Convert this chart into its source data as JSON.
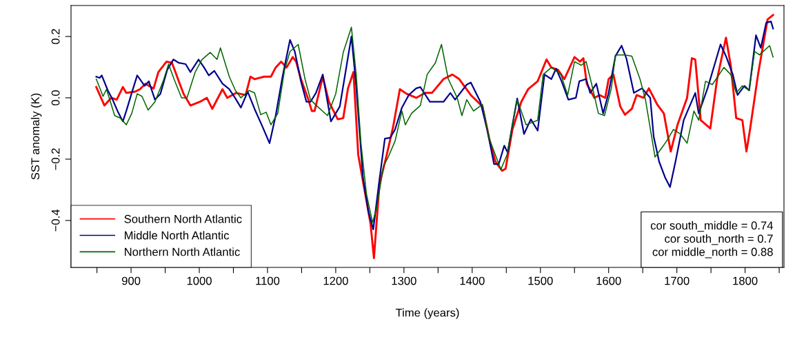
{
  "chart_data": {
    "type": "line",
    "xlabel": "Time (years)",
    "ylabel": "SST anomaly (K)",
    "xlim": [
      812,
      1857
    ],
    "ylim": [
      -0.553,
      0.301
    ],
    "xticks": [
      {
        "value": 850,
        "label": null
      },
      900,
      {
        "value": 950,
        "label": null
      },
      1000,
      {
        "value": 1050,
        "label": null
      },
      1100,
      {
        "value": 1150,
        "label": null
      },
      1200,
      {
        "value": 1250,
        "label": null
      },
      1300,
      {
        "value": 1350,
        "label": null
      },
      1400,
      {
        "value": 1450,
        "label": null
      },
      1500,
      {
        "value": 1550,
        "label": null
      },
      1600,
      {
        "value": 1650,
        "label": null
      },
      1700,
      {
        "value": 1750,
        "label": null
      },
      1800,
      {
        "value": 1850,
        "label": null
      }
    ],
    "yticks": [
      {
        "value": -0.4,
        "label": "−0.4"
      },
      {
        "value": -0.2,
        "label": "−0.2"
      },
      {
        "value": 0.0,
        "label": "0.0"
      },
      0.2
    ],
    "grid": false,
    "legend": "bottom left",
    "line_style": "solid",
    "marker": "none",
    "annotations": [
      "cor south_middle = 0.74",
      "cor south_north = 0.7",
      "cor middle_north = 0.88"
    ],
    "series": [
      {
        "name": "Southern North Atlantic",
        "color": "#ff0000",
        "x": [
          849,
          861,
          871,
          879,
          888,
          893,
          906,
          913,
          921,
          933,
          940,
          952,
          960,
          970,
          977,
          987,
          1001,
          1011,
          1019,
          1034,
          1041,
          1054,
          1068,
          1075,
          1081,
          1095,
          1105,
          1112,
          1120,
          1128,
          1137,
          1142,
          1149,
          1159,
          1165,
          1169,
          1181,
          1190,
          1203,
          1211,
          1218,
          1226,
          1233,
          1242,
          1251,
          1256,
          1264,
          1274,
          1284,
          1294,
          1304,
          1318,
          1331,
          1341,
          1358,
          1371,
          1381,
          1398,
          1415,
          1425,
          1434,
          1444,
          1449,
          1459,
          1472,
          1482,
          1496,
          1509,
          1516,
          1526,
          1535,
          1550,
          1558,
          1563,
          1568,
          1579,
          1587,
          1595,
          1600,
          1607,
          1617,
          1624,
          1634,
          1641,
          1651,
          1659,
          1671,
          1681,
          1691,
          1701,
          1715,
          1722,
          1727,
          1735,
          1749,
          1759,
          1772,
          1779,
          1787,
          1796,
          1802,
          1807,
          1819,
          1833,
          1841
        ],
        "values": [
          0.035,
          -0.025,
          0.0,
          -0.006,
          0.035,
          0.016,
          0.02,
          0.028,
          0.046,
          0.03,
          0.084,
          0.118,
          0.114,
          0.054,
          0.013,
          -0.025,
          -0.013,
          0.0,
          -0.036,
          0.028,
          0.0,
          0.016,
          0.009,
          0.069,
          0.061,
          0.069,
          0.069,
          0.099,
          0.118,
          0.099,
          0.133,
          0.118,
          0.061,
          0.0,
          -0.043,
          -0.043,
          0.069,
          -0.013,
          -0.07,
          -0.066,
          0.031,
          0.084,
          -0.186,
          -0.298,
          -0.41,
          -0.523,
          -0.283,
          -0.193,
          -0.096,
          0.028,
          0.013,
          0.0,
          0.016,
          0.016,
          0.061,
          0.076,
          0.061,
          0.009,
          -0.028,
          -0.133,
          -0.208,
          -0.238,
          -0.231,
          -0.103,
          -0.013,
          0.028,
          0.054,
          0.125,
          0.099,
          0.091,
          0.061,
          0.133,
          0.118,
          0.129,
          0.046,
          0.0,
          0.009,
          0.0,
          0.061,
          0.076,
          -0.028,
          -0.055,
          -0.036,
          0.009,
          0.0,
          0.031,
          -0.021,
          -0.051,
          -0.175,
          -0.088,
          0.0,
          0.129,
          0.125,
          -0.073,
          -0.1,
          0.061,
          0.196,
          0.106,
          -0.066,
          -0.073,
          -0.175,
          -0.107,
          0.076,
          0.256,
          0.27
        ]
      },
      {
        "name": "Middle North Atlantic",
        "color": "#00008b",
        "x": [
          849,
          854,
          857,
          866,
          873,
          881,
          888,
          893,
          901,
          909,
          920,
          926,
          935,
          943,
          953,
          962,
          970,
          980,
          987,
          999,
          1007,
          1014,
          1022,
          1034,
          1044,
          1053,
          1061,
          1071,
          1081,
          1093,
          1103,
          1112,
          1122,
          1133,
          1140,
          1149,
          1157,
          1163,
          1171,
          1181,
          1193,
          1206,
          1216,
          1223,
          1230,
          1240,
          1248,
          1255,
          1264,
          1272,
          1280,
          1287,
          1297,
          1307,
          1318,
          1324,
          1338,
          1348,
          1358,
          1368,
          1375,
          1392,
          1398,
          1412,
          1422,
          1432,
          1439,
          1447,
          1452,
          1459,
          1466,
          1476,
          1486,
          1496,
          1506,
          1516,
          1523,
          1531,
          1541,
          1552,
          1557,
          1567,
          1573,
          1582,
          1592,
          1600,
          1610,
          1619,
          1626,
          1637,
          1649,
          1661,
          1666,
          1674,
          1683,
          1690,
          1698,
          1710,
          1727,
          1732,
          1745,
          1755,
          1764,
          1772,
          1782,
          1789,
          1799,
          1806,
          1816,
          1823,
          1831,
          1838,
          1841
        ],
        "values": [
          0.069,
          0.065,
          0.073,
          0.024,
          -0.006,
          -0.047,
          -0.077,
          -0.043,
          0.016,
          0.073,
          0.039,
          0.054,
          -0.006,
          0.013,
          0.091,
          0.125,
          0.114,
          0.11,
          0.084,
          0.125,
          0.099,
          0.073,
          0.088,
          0.046,
          0.028,
          -0.002,
          -0.032,
          0.02,
          -0.036,
          -0.096,
          -0.148,
          -0.058,
          0.069,
          0.189,
          0.151,
          0.054,
          -0.013,
          -0.013,
          0.016,
          0.076,
          -0.077,
          -0.028,
          0.106,
          0.2,
          0.039,
          -0.261,
          -0.373,
          -0.429,
          -0.268,
          -0.133,
          -0.13,
          -0.103,
          -0.032,
          0.009,
          0.031,
          0.035,
          -0.013,
          -0.013,
          -0.013,
          0.016,
          -0.006,
          0.043,
          0.05,
          -0.013,
          -0.103,
          -0.216,
          -0.216,
          -0.156,
          -0.178,
          -0.088,
          -0.002,
          -0.118,
          -0.07,
          -0.107,
          0.076,
          0.061,
          0.095,
          0.054,
          -0.006,
          0.0,
          0.054,
          0.061,
          0.016,
          0.046,
          -0.051,
          0.016,
          0.136,
          0.17,
          0.129,
          0.016,
          0.031,
          0.0,
          -0.126,
          -0.208,
          -0.261,
          -0.291,
          -0.208,
          -0.073,
          0.016,
          -0.051,
          0.031,
          0.106,
          0.174,
          0.136,
          0.076,
          0.009,
          0.039,
          0.024,
          0.204,
          0.163,
          0.245,
          0.249,
          0.226
        ]
      },
      {
        "name": "Northern North Atlantic",
        "color": "#006400",
        "x": [
          849,
          859,
          864,
          876,
          884,
          893,
          901,
          909,
          916,
          925,
          935,
          947,
          955,
          963,
          974,
          982,
          994,
          1004,
          1016,
          1026,
          1031,
          1044,
          1053,
          1061,
          1073,
          1081,
          1090,
          1098,
          1105,
          1115,
          1125,
          1133,
          1145,
          1155,
          1163,
          1173,
          1188,
          1200,
          1211,
          1223,
          1230,
          1237,
          1245,
          1254,
          1260,
          1270,
          1277,
          1287,
          1297,
          1302,
          1311,
          1324,
          1334,
          1346,
          1355,
          1365,
          1378,
          1385,
          1392,
          1402,
          1415,
          1425,
          1434,
          1442,
          1451,
          1466,
          1479,
          1496,
          1504,
          1516,
          1530,
          1540,
          1550,
          1560,
          1567,
          1575,
          1585,
          1594,
          1604,
          1610,
          1624,
          1634,
          1646,
          1654,
          1668,
          1678,
          1685,
          1695,
          1705,
          1715,
          1725,
          1732,
          1742,
          1752,
          1769,
          1779,
          1787,
          1796,
          1806,
          1814,
          1821,
          1836,
          1841
        ],
        "values": [
          0.061,
          0.005,
          0.028,
          -0.058,
          -0.066,
          -0.088,
          -0.051,
          0.013,
          0.005,
          -0.04,
          -0.013,
          0.054,
          0.11,
          0.061,
          0.0,
          0.0,
          0.084,
          0.125,
          0.148,
          0.125,
          0.163,
          0.069,
          0.024,
          0.0,
          0.024,
          0.016,
          -0.055,
          -0.047,
          -0.088,
          -0.051,
          0.091,
          0.151,
          0.174,
          0.061,
          -0.006,
          -0.028,
          -0.058,
          0.013,
          0.148,
          0.23,
          0.076,
          -0.148,
          -0.313,
          -0.407,
          -0.358,
          -0.223,
          -0.193,
          -0.141,
          -0.043,
          -0.088,
          -0.051,
          -0.025,
          0.076,
          0.114,
          0.174,
          0.061,
          0.0,
          -0.058,
          -0.006,
          -0.043,
          -0.021,
          -0.133,
          -0.186,
          -0.234,
          -0.186,
          -0.006,
          -0.088,
          -0.073,
          0.076,
          0.099,
          0.076,
          0.009,
          0.118,
          0.106,
          0.118,
          0.046,
          -0.051,
          -0.058,
          0.031,
          0.14,
          0.14,
          0.136,
          0.061,
          -0.006,
          -0.193,
          -0.163,
          -0.141,
          -0.103,
          -0.118,
          -0.148,
          -0.043,
          -0.073,
          0.054,
          0.043,
          0.099,
          0.076,
          0.016,
          0.039,
          0.024,
          0.151,
          0.14,
          0.17,
          0.133
        ]
      }
    ]
  }
}
